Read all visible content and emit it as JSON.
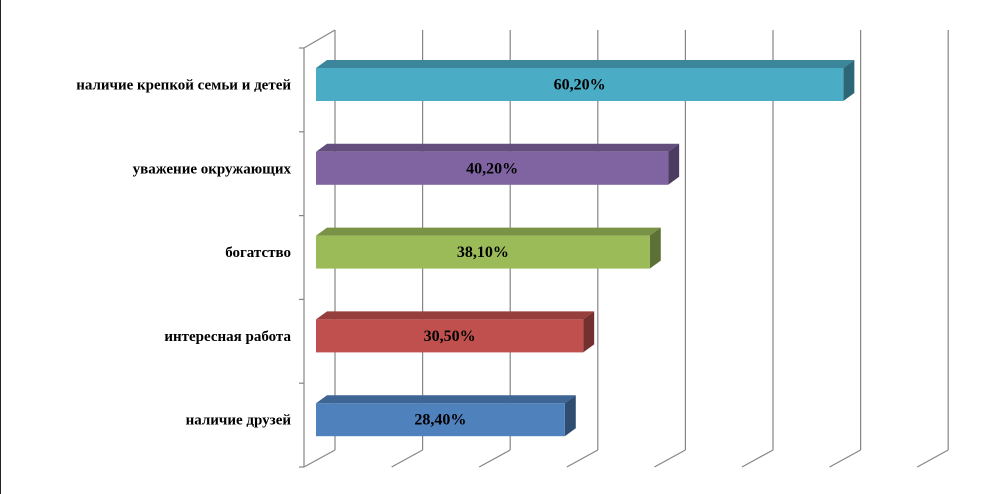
{
  "chart_data": {
    "type": "bar",
    "orientation": "horizontal",
    "three_d": true,
    "categories": [
      "наличие крепкой семьи и детей",
      "уважение окружающих",
      "богатство",
      "интересная работа",
      "наличие друзей"
    ],
    "values": [
      60.2,
      40.2,
      38.1,
      30.5,
      28.4
    ],
    "value_labels": [
      "60,20%",
      "40,20%",
      "38,10%",
      "30,50%",
      "28,40%"
    ],
    "colors": [
      "#4BACC6",
      "#8064A2",
      "#9BBB59",
      "#C0504D",
      "#4F81BD"
    ],
    "title": "",
    "xlabel": "",
    "ylabel": "",
    "xlim": [
      0,
      70
    ],
    "grid": true,
    "legend": "none"
  }
}
